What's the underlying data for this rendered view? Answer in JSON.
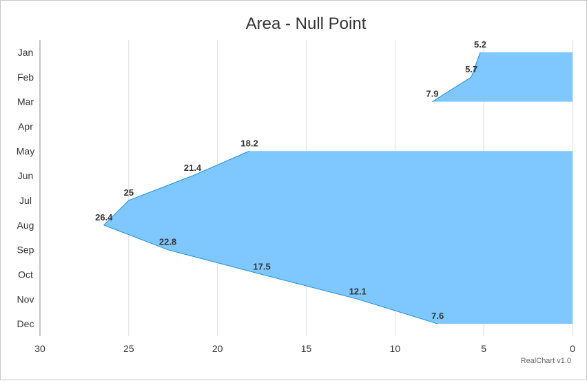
{
  "chart_data": {
    "type": "area",
    "orientation": "horizontal",
    "title": "Area - Null Point",
    "categories": [
      "Jan",
      "Feb",
      "Mar",
      "Apr",
      "May",
      "Jun",
      "Jul",
      "Aug",
      "Sep",
      "Oct",
      "Nov",
      "Dec"
    ],
    "series": [
      {
        "values": [
          5.2,
          5.7,
          7.9,
          null,
          18.2,
          21.4,
          25,
          26.4,
          22.8,
          17.5,
          12.1,
          7.6
        ],
        "color": "#7fc7ff"
      }
    ],
    "value_axis": {
      "min": 0,
      "max": 30,
      "reversed": true,
      "ticks": [
        30,
        25,
        20,
        15,
        10,
        5,
        0
      ],
      "position": "bottom"
    },
    "category_axis": {
      "position": "left"
    },
    "grid": true,
    "data_labels": true,
    "credit": "RealChart v1.0"
  }
}
